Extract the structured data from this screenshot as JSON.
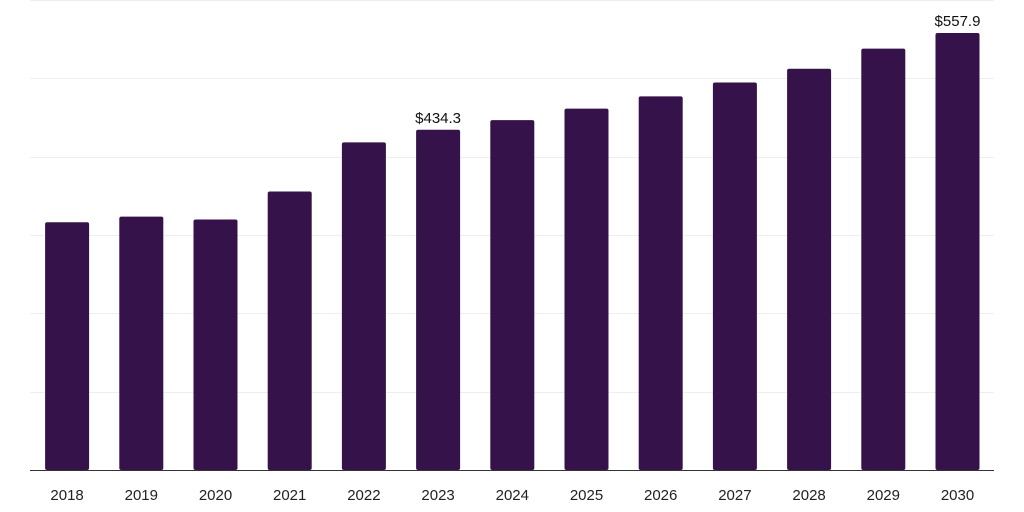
{
  "chart_data": {
    "type": "bar",
    "categories": [
      "2018",
      "2019",
      "2020",
      "2021",
      "2022",
      "2023",
      "2024",
      "2025",
      "2026",
      "2027",
      "2028",
      "2029",
      "2030"
    ],
    "values": [
      316.2,
      323.5,
      319.8,
      355.6,
      418.2,
      434.3,
      446.7,
      461.3,
      477.0,
      494.7,
      512.3,
      537.9,
      557.9
    ],
    "data_labels": [
      {
        "index": 5,
        "text": "$434.3"
      },
      {
        "index": 12,
        "text": "$557.9"
      }
    ],
    "ylim": [
      0,
      600
    ],
    "grid": true,
    "colors": {
      "bar": "#36124a",
      "grid": "#eeeeee",
      "axis": "#333333"
    }
  }
}
